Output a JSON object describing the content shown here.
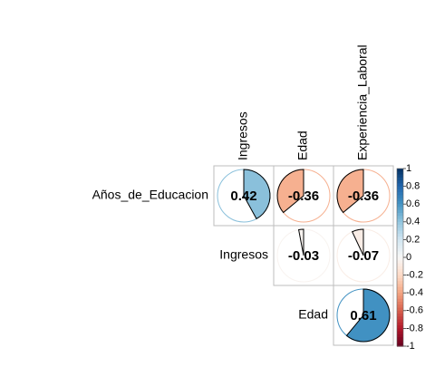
{
  "chart_data": {
    "type": "heatmap",
    "method": "pie",
    "layout": "upper-triangular correlation matrix",
    "columns": [
      "Ingresos",
      "Edad",
      "Experiencia_Laboral"
    ],
    "rows": [
      "Años_de_Educacion",
      "Ingresos",
      "Edad"
    ],
    "cells": [
      {
        "row": "Años_de_Educacion",
        "col": "Ingresos",
        "value": 0.42,
        "label": "0.42"
      },
      {
        "row": "Años_de_Educacion",
        "col": "Edad",
        "value": -0.36,
        "label": "-0.36"
      },
      {
        "row": "Años_de_Educacion",
        "col": "Experiencia_Laboral",
        "value": -0.36,
        "label": "-0.36"
      },
      {
        "row": "Ingresos",
        "col": "Edad",
        "value": -0.03,
        "label": "-0.03"
      },
      {
        "row": "Ingresos",
        "col": "Experiencia_Laboral",
        "value": -0.07,
        "label": "-0.07"
      },
      {
        "row": "Edad",
        "col": "Experiencia_Laboral",
        "value": 0.61,
        "label": "0.61"
      }
    ],
    "color_scale": {
      "range": [
        -1,
        1
      ],
      "ticks": [
        "1",
        "0.8",
        "0.6",
        "0.4",
        "0.2",
        "0",
        "-0.2",
        "-0.4",
        "-0.6",
        "-0.8",
        "-1"
      ],
      "colors": {
        "negative": "#67001F",
        "zero": "#F7F7F7",
        "positive": "#053061"
      }
    },
    "grid": true,
    "legend_position": "right"
  }
}
